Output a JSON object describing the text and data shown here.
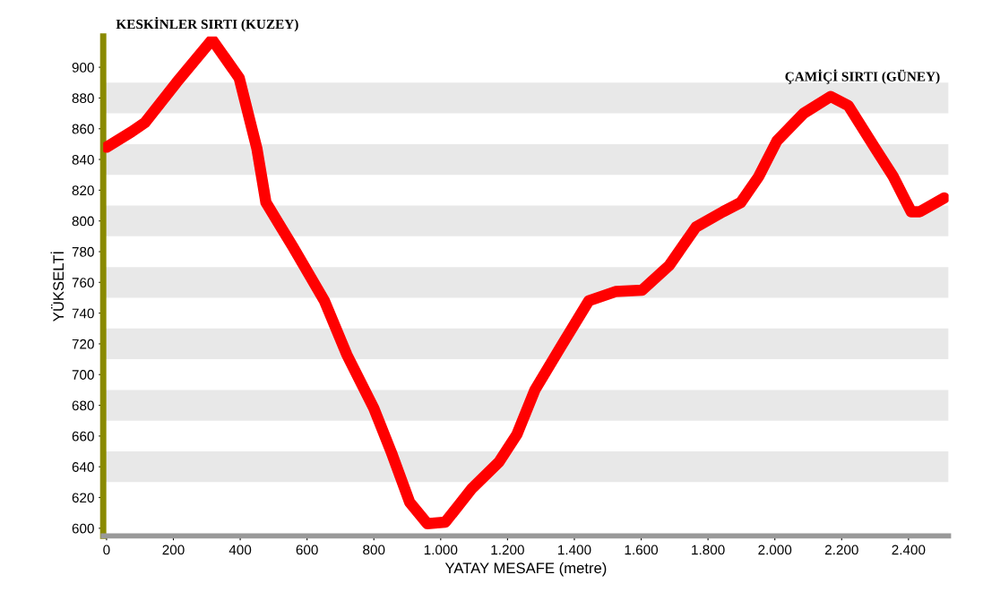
{
  "chart_data": {
    "type": "line",
    "xlabel": "YATAY MESAFE (metre)",
    "ylabel": "YÜKSELTİ",
    "annotations": [
      "KESKİNLER SIRTI (KUZEY)",
      "ÇAMİÇİ SIRTI (GÜNEY)"
    ],
    "x": [
      0,
      75,
      115,
      209,
      316,
      397,
      450,
      477,
      558,
      652,
      719,
      800,
      853,
      907,
      960,
      1014,
      1094,
      1174,
      1228,
      1282,
      1362,
      1443,
      1523,
      1603,
      1684,
      1764,
      1845,
      1898,
      1952,
      2006,
      2086,
      2167,
      2220,
      2301,
      2354,
      2408,
      2434,
      2507
    ],
    "series": [
      {
        "color": "#ff0000",
        "values": [
          848,
          858,
          864,
          890,
          918,
          893,
          847,
          812,
          783,
          748,
          713,
          678,
          649,
          617,
          603,
          604,
          626,
          643,
          661,
          690,
          719,
          748,
          754,
          755,
          771,
          796,
          806,
          812,
          829,
          852,
          870,
          881,
          875,
          847,
          829,
          806,
          806,
          815
        ]
      }
    ],
    "xlim": [
      -10,
      2520
    ],
    "ylim": [
      595,
      920
    ],
    "xticks": [
      0,
      200,
      400,
      600,
      800,
      {
        "value": 1000,
        "label": "1.000"
      },
      {
        "value": 1200,
        "label": "1.200"
      },
      {
        "value": 1400,
        "label": "1.400"
      },
      {
        "value": 1600,
        "label": "1.600"
      },
      {
        "value": 1800,
        "label": "1.800"
      },
      {
        "value": 2000,
        "label": "2.000"
      },
      {
        "value": 2200,
        "label": "2.200"
      },
      {
        "value": 2400,
        "label": "2.400"
      }
    ],
    "yticks": [
      600,
      620,
      640,
      660,
      680,
      700,
      720,
      740,
      760,
      780,
      800,
      820,
      840,
      860,
      880,
      900
    ],
    "bands": [
      {
        "axis": "y",
        "from": 630,
        "to": 650,
        "color": "#e8e8e8"
      },
      {
        "axis": "y",
        "from": 670,
        "to": 690,
        "color": "#e8e8e8"
      },
      {
        "axis": "y",
        "from": 710,
        "to": 730,
        "color": "#e8e8e8"
      },
      {
        "axis": "y",
        "from": 750,
        "to": 770,
        "color": "#e8e8e8"
      },
      {
        "axis": "y",
        "from": 790,
        "to": 810,
        "color": "#e8e8e8"
      },
      {
        "axis": "y",
        "from": 830,
        "to": 850,
        "color": "#e8e8e8"
      },
      {
        "axis": "y",
        "from": 870,
        "to": 890,
        "color": "#e8e8e8"
      }
    ],
    "legend": false,
    "marker": "none",
    "line_style": "solid"
  }
}
